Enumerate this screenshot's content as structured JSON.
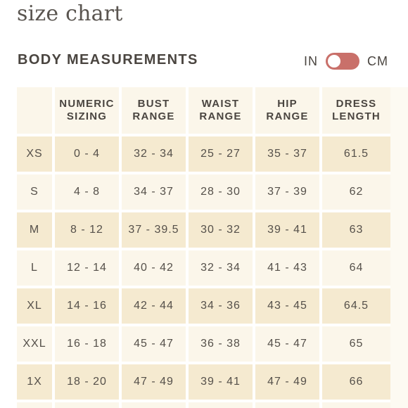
{
  "page": {
    "title": "size chart",
    "section_title": "BODY MEASUREMENTS"
  },
  "unit_toggle": {
    "left_label": "IN",
    "right_label": "CM",
    "selected": "IN",
    "track_color": "#c9706a",
    "knob_color": "#ffffff"
  },
  "colors": {
    "row_dark": "#f5ead0",
    "row_light": "#fbf6ea",
    "text": "#4a4540"
  },
  "table": {
    "headers": [
      {
        "line1": "",
        "line2": ""
      },
      {
        "line1": "NUMERIC",
        "line2": "SIZING"
      },
      {
        "line1": "BUST",
        "line2": "RANGE"
      },
      {
        "line1": "WAIST",
        "line2": "RANGE"
      },
      {
        "line1": "HIP",
        "line2": "RANGE"
      },
      {
        "line1": "DRESS",
        "line2": "LENGTH"
      }
    ],
    "rows": [
      {
        "size": "XS",
        "numeric": "0 - 4",
        "bust": "32 - 34",
        "waist": "25 - 27",
        "hip": "35 - 37",
        "dress": "61.5"
      },
      {
        "size": "S",
        "numeric": "4 - 8",
        "bust": "34 - 37",
        "waist": "28 - 30",
        "hip": "37 - 39",
        "dress": "62"
      },
      {
        "size": "M",
        "numeric": "8 - 12",
        "bust": "37 - 39.5",
        "waist": "30 - 32",
        "hip": "39 - 41",
        "dress": "63"
      },
      {
        "size": "L",
        "numeric": "12 - 14",
        "bust": "40 - 42",
        "waist": "32 - 34",
        "hip": "41 - 43",
        "dress": "64"
      },
      {
        "size": "XL",
        "numeric": "14 - 16",
        "bust": "42 - 44",
        "waist": "34 - 36",
        "hip": "43 - 45",
        "dress": "64.5"
      },
      {
        "size": "XXL",
        "numeric": "16 - 18",
        "bust": "45 - 47",
        "waist": "36 - 38",
        "hip": "45 - 47",
        "dress": "65"
      },
      {
        "size": "1X",
        "numeric": "18 - 20",
        "bust": "47 - 49",
        "waist": "39 - 41",
        "hip": "47 - 49",
        "dress": "66"
      }
    ]
  }
}
